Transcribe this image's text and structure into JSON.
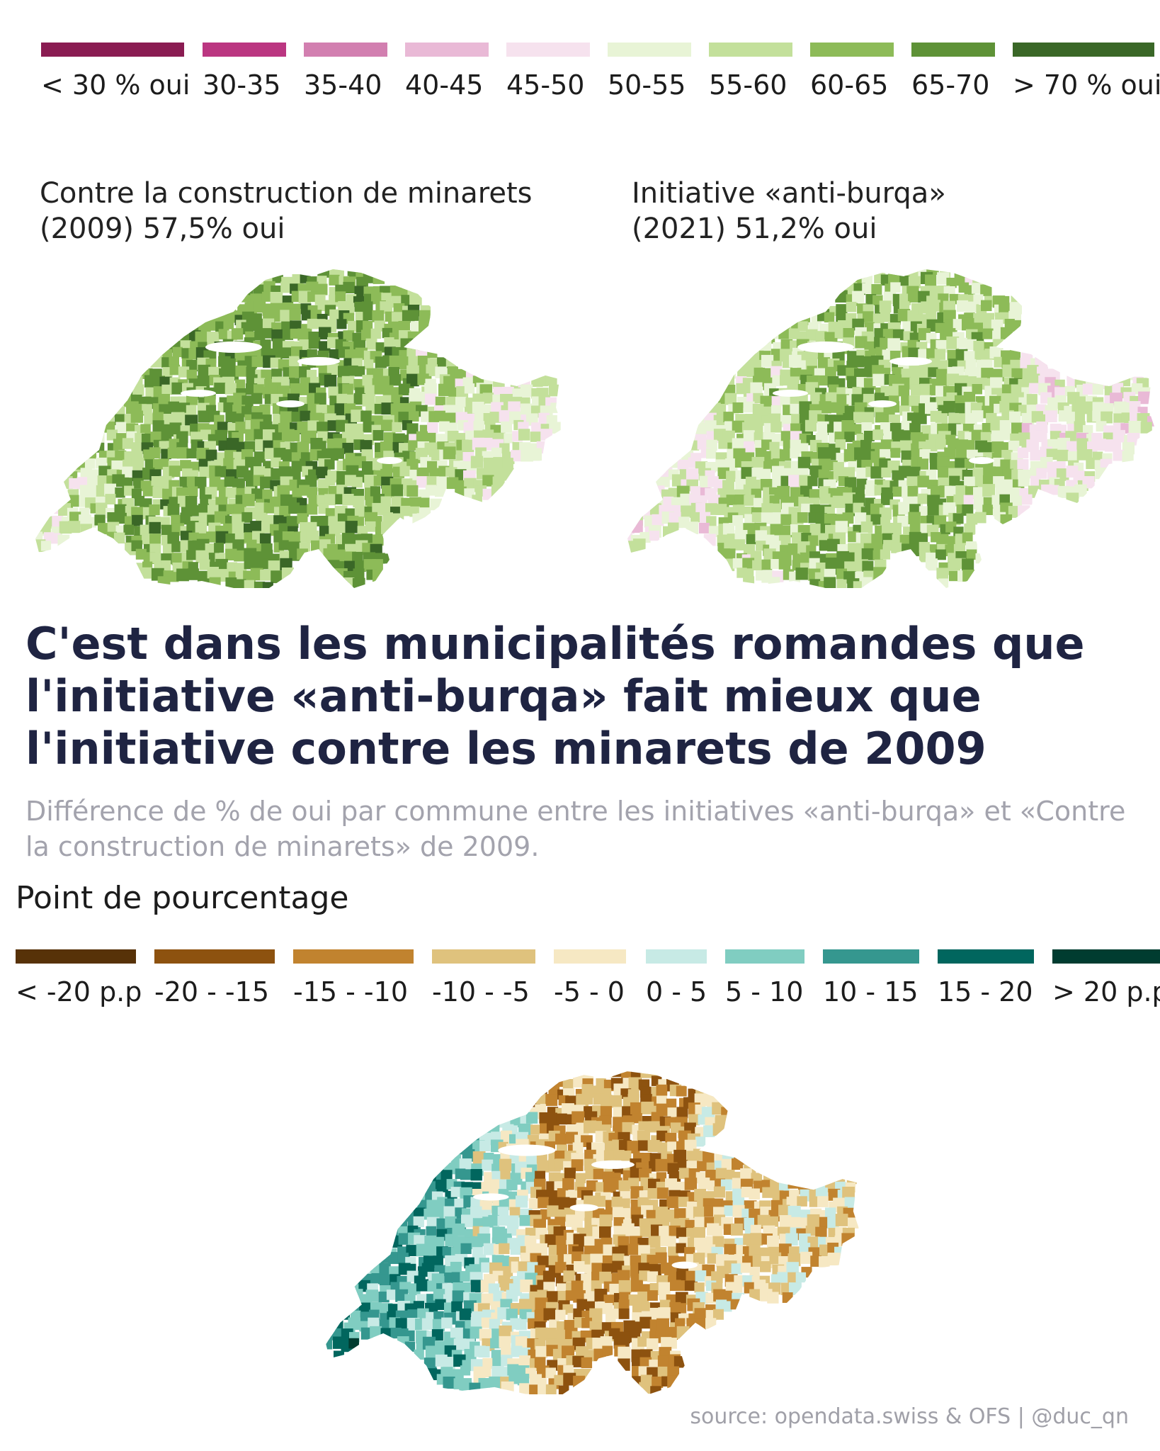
{
  "yes_legend": {
    "items": [
      {
        "label": "< 30 % oui",
        "color": "#8a1c52"
      },
      {
        "label": "30-35",
        "color": "#bb3681"
      },
      {
        "label": "35-40",
        "color": "#d27fb0"
      },
      {
        "label": "40-45",
        "color": "#e9b9d6"
      },
      {
        "label": "45-50",
        "color": "#f6e2ee"
      },
      {
        "label": "50-55",
        "color": "#e8f4d6"
      },
      {
        "label": "55-60",
        "color": "#c3e09b"
      },
      {
        "label": "60-65",
        "color": "#8dbb58"
      },
      {
        "label": "65-70",
        "color": "#5e9237"
      },
      {
        "label": "> 70 % oui",
        "color": "#3a6727"
      }
    ]
  },
  "map_left": {
    "title_line1": "Contre la construction de minarets",
    "title_line2": "(2009) 57,5% oui"
  },
  "map_right": {
    "title_line1": "Initiative «anti-burqa»",
    "title_line2": "(2021) 51,2% oui"
  },
  "headline": "C'est dans les municipalités romandes que l'initiative «anti-burqa» fait mieux que l'initiative contre les minarets de 2009",
  "subtitle": "Différence de % de oui par commune entre les initiatives «anti-burqa» et «Contre la construction de minarets» de 2009.",
  "diff_legend": {
    "title": "Point de pourcentage",
    "items": [
      {
        "label": "< -20 p.p",
        "color": "#573208"
      },
      {
        "label": "-20 - -15",
        "color": "#8d520f"
      },
      {
        "label": "-15 - -10",
        "color": "#c1832f"
      },
      {
        "label": "-10 - -5",
        "color": "#dfc27d"
      },
      {
        "label": "-5 - 0",
        "color": "#f6e8c3"
      },
      {
        "label": "0 - 5",
        "color": "#c7eae5"
      },
      {
        "label": "5 - 10",
        "color": "#80cdc1"
      },
      {
        "label": "10 - 15",
        "color": "#35978f"
      },
      {
        "label": "15 - 20",
        "color": "#01665e"
      },
      {
        "label": "> 20 p.p",
        "color": "#003c30"
      }
    ]
  },
  "source": "source: opendata.swiss & OFS | @duc_qn"
}
